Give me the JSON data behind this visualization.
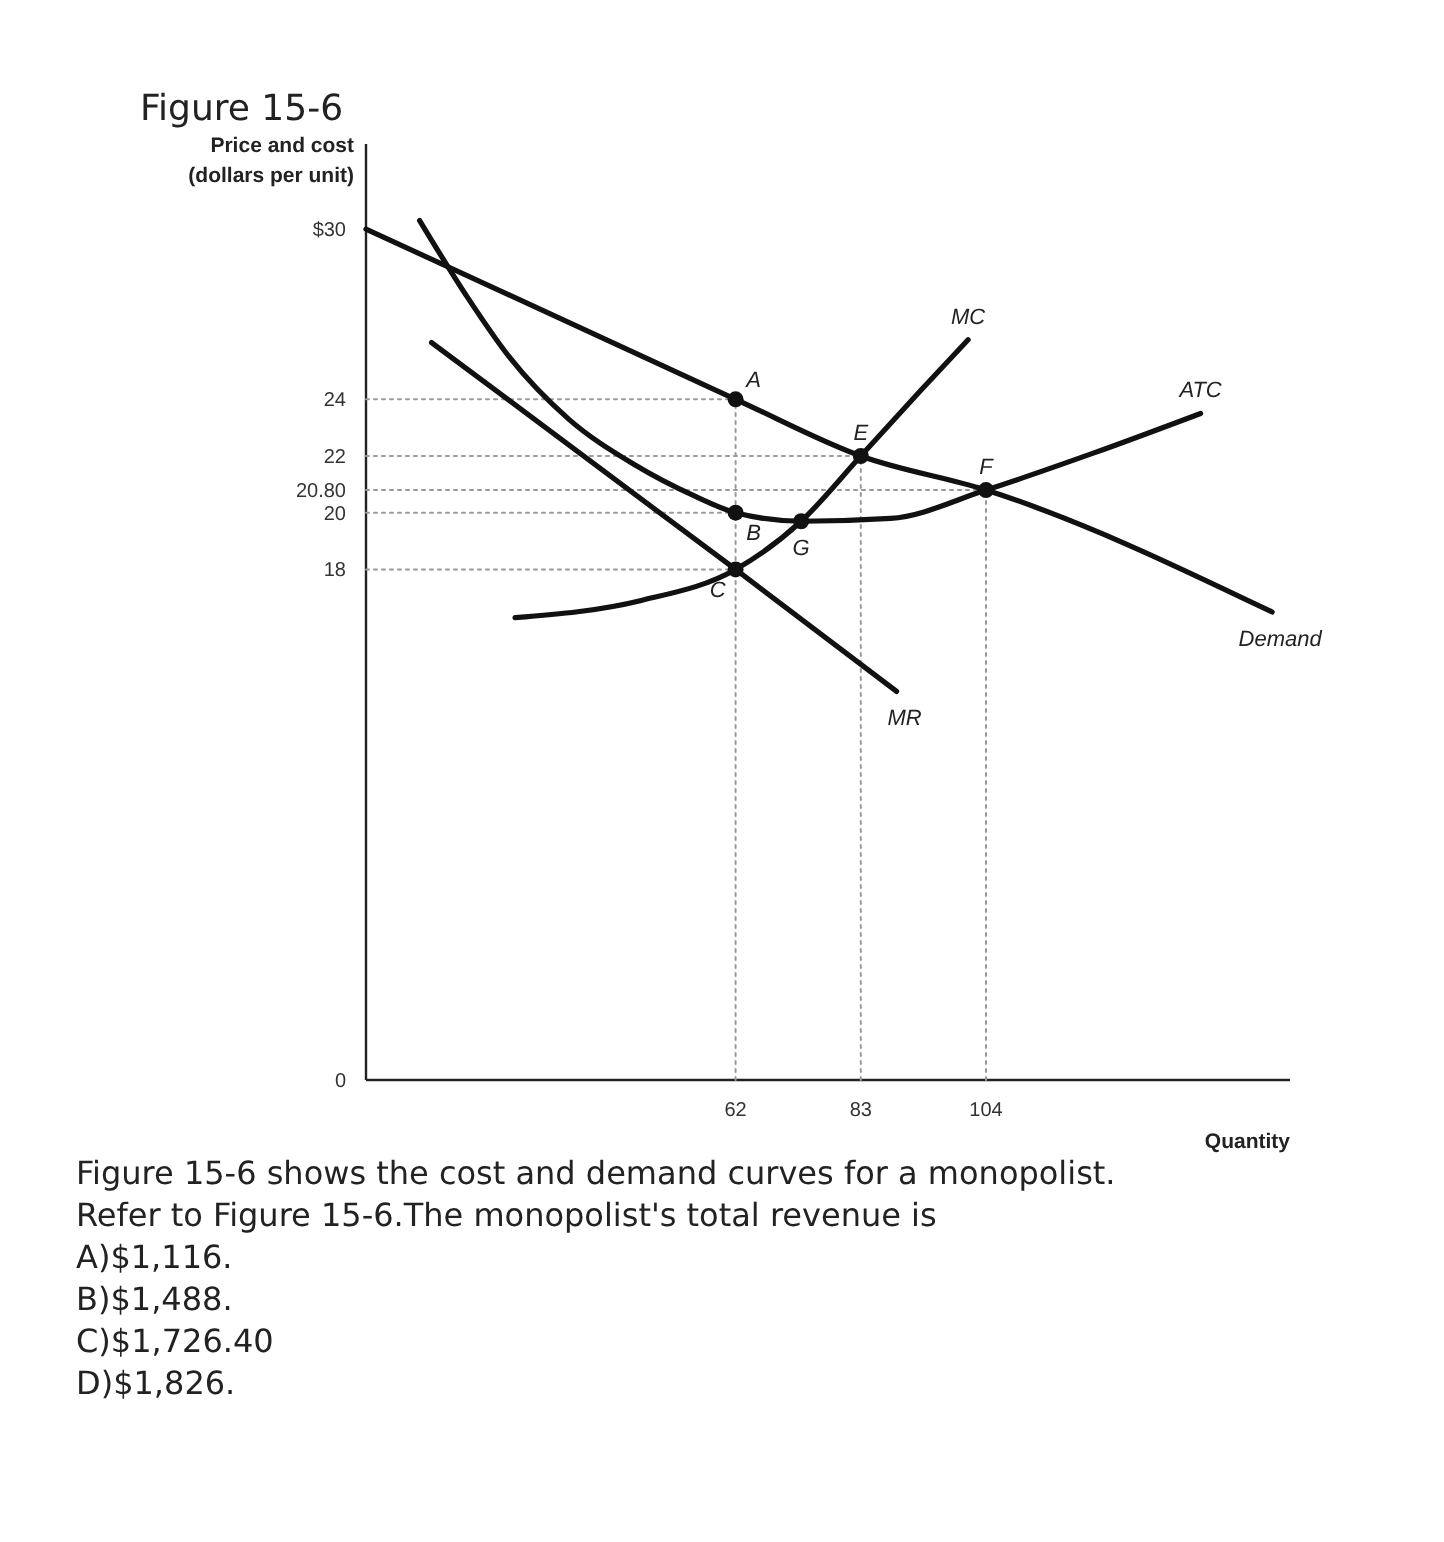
{
  "chart_data": {
    "type": "line",
    "title": "Figure 15-6",
    "ylabel": "Price and cost\n(dollars per unit)",
    "xlabel": "Quantity",
    "xlim": [
      0,
      155
    ],
    "ylim": [
      0,
      33
    ],
    "xticks": [
      62,
      83,
      104
    ],
    "yticks": [
      0,
      18,
      20,
      {
        "value": 20.8,
        "label": "20.80"
      },
      22,
      24,
      {
        "value": 30,
        "label": "$30"
      }
    ],
    "series": [
      {
        "color": "#9a9a9a",
        "line_style": "dotted",
        "x": [
          0,
          62
        ],
        "values": [
          24,
          24
        ]
      },
      {
        "color": "#9a9a9a",
        "line_style": "dotted",
        "x": [
          0,
          83
        ],
        "values": [
          22,
          22
        ]
      },
      {
        "color": "#9a9a9a",
        "line_style": "dotted",
        "x": [
          0,
          104
        ],
        "values": [
          20.8,
          20.8
        ]
      },
      {
        "color": "#9a9a9a",
        "line_style": "dotted",
        "x": [
          0,
          62
        ],
        "values": [
          20,
          20
        ]
      },
      {
        "color": "#9a9a9a",
        "line_style": "dotted",
        "x": [
          0,
          62
        ],
        "values": [
          18,
          18
        ]
      },
      {
        "color": "#9a9a9a",
        "line_style": "dotted",
        "x": [
          62,
          62
        ],
        "values": [
          0,
          24
        ]
      },
      {
        "color": "#9a9a9a",
        "line_style": "dotted",
        "x": [
          83,
          83
        ],
        "values": [
          0,
          22
        ]
      },
      {
        "color": "#9a9a9a",
        "line_style": "dotted",
        "x": [
          104,
          104
        ],
        "values": [
          0,
          20.8
        ]
      },
      {
        "name": "Demand",
        "color": "#111111",
        "x": [
          0,
          62,
          83,
          104,
          152
        ],
        "values": [
          30,
          24,
          22,
          20.8,
          16.5
        ]
      },
      {
        "name": "MR",
        "color": "#111111",
        "x": [
          11,
          62,
          89
        ],
        "values": [
          26,
          18,
          13.7
        ]
      },
      {
        "name": "MC",
        "color": "#111111",
        "x": [
          25,
          46,
          62,
          73,
          83,
          93,
          101
        ],
        "values": [
          16.3,
          16.9,
          18,
          19.7,
          22,
          24.3,
          26.1
        ]
      },
      {
        "name": "ATC",
        "color": "#111111",
        "x": [
          9,
          17,
          24,
          34,
          45,
          55,
          62,
          73,
          88,
          104,
          122,
          140
        ],
        "values": [
          30.3,
          27.6,
          25.5,
          23.3,
          21.7,
          20.6,
          20,
          19.7,
          19.8,
          20.8,
          22.1,
          23.5
        ]
      },
      {
        "type": "scatter",
        "marker": "circle",
        "color": "#111111",
        "x": [
          62,
          62,
          62,
          83,
          104,
          73
        ],
        "values": [
          24,
          20,
          18,
          22,
          20.8,
          19.7
        ]
      }
    ],
    "annotations": [
      {
        "text": "A",
        "x": 62,
        "y": 24
      },
      {
        "text": "B",
        "x": 62,
        "y": 20
      },
      {
        "text": "C",
        "x": 62,
        "y": 18
      },
      {
        "text": "E",
        "x": 83,
        "y": 22
      },
      {
        "text": "F",
        "x": 104,
        "y": 20.8
      },
      {
        "text": "G",
        "x": 73,
        "y": 19.7
      },
      "Figure 15-6 shows the cost and demand curves for a monopolist.",
      "Refer to Figure 15-6.The monopolist's total revenue is",
      "A)$1,116.",
      "B)$1,488.",
      "C)$1,726.40",
      "D)$1,826."
    ]
  }
}
